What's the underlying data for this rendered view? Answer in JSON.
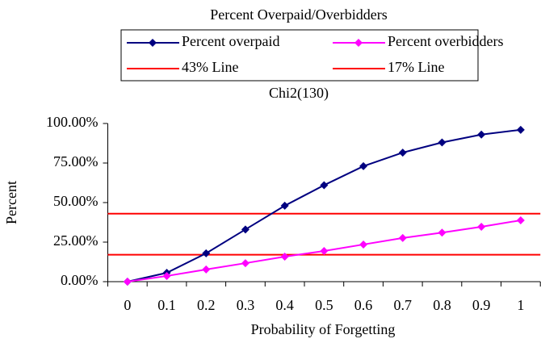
{
  "chart_data": {
    "type": "line",
    "title": "Percent Overpaid/Overbidders",
    "subtitle": "Chi2(130)",
    "x_label": "Probability of Forgetting",
    "y_label": "Percent",
    "categories": [
      "0",
      "0.1",
      "0.2",
      "0.3",
      "0.4",
      "0.5",
      "0.6",
      "0.7",
      "0.8",
      "0.9",
      "1"
    ],
    "series": [
      {
        "name": "Percent overpaid",
        "color": "#000080",
        "values": [
          0,
          5.6,
          17.9,
          33,
          48,
          61,
          73,
          81.6,
          88,
          93,
          96
        ]
      },
      {
        "name": "Percent overbidders",
        "color": "#ff00ff",
        "values": [
          0,
          3.6,
          7.7,
          11.7,
          15.8,
          19.4,
          23.5,
          27.6,
          31,
          34.7,
          38.8
        ]
      }
    ],
    "reference_lines": [
      {
        "name": "43% Line",
        "color": "#ff0000",
        "value": 43
      },
      {
        "name": "17% Line",
        "color": "#ff0000",
        "value": 17
      }
    ],
    "ylim": [
      0,
      100
    ],
    "yticks": [
      {
        "value": 0,
        "label": "0.00%"
      },
      {
        "value": 25,
        "label": "25.00%"
      },
      {
        "value": 50,
        "label": "50.00%"
      },
      {
        "value": 75,
        "label": "75.00%"
      },
      {
        "value": 100,
        "label": "100.00%"
      }
    ]
  }
}
